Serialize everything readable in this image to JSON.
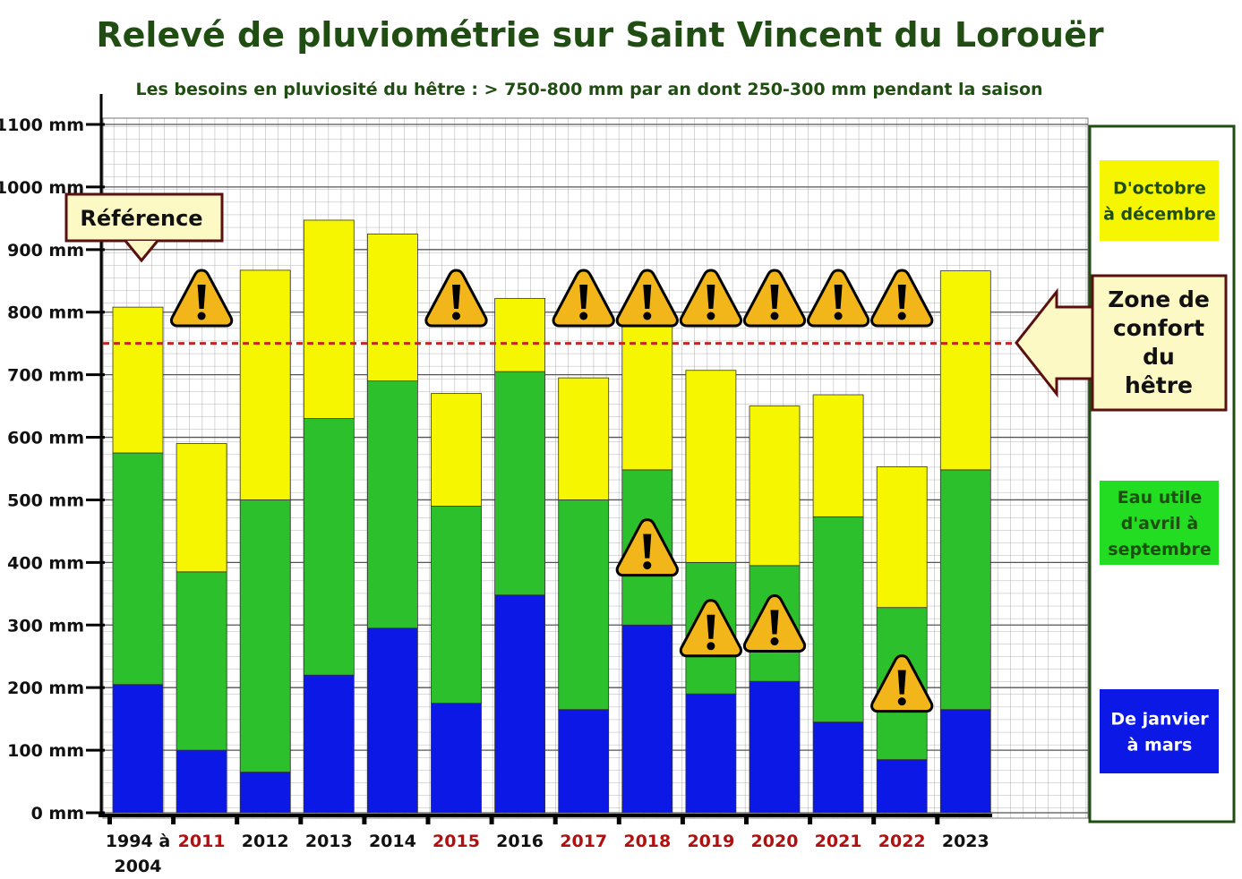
{
  "title": "Relevé de pluviométrie sur Saint Vincent du Lorouër",
  "subtitle": "Les besoins en pluviosité du hêtre : > 750-800 mm par an dont 250-300 mm pendant la saison",
  "reference_label": "Référence",
  "comfort_label": [
    "Zone de",
    "confort",
    "du",
    "hêtre"
  ],
  "legend": [
    {
      "lines": [
        "D'octobre",
        "à décembre"
      ],
      "color": "#f6f600",
      "text_color": "#1f4d12"
    },
    {
      "lines": [
        "Eau utile",
        "d'avril à",
        "septembre"
      ],
      "color": "#22dd22",
      "text_color": "#1f4d12"
    },
    {
      "lines": [
        "De janvier",
        "à mars"
      ],
      "color": "#0b18e6",
      "text_color": "#ffffff"
    }
  ],
  "colors": {
    "jan_mar": "#0b18e6",
    "apr_sep": "#2cc12c",
    "oct_dec": "#f6f600",
    "threshold": "#cc2222",
    "warning": "#f2b51a",
    "title": "#1f4d12",
    "deficit_year": "#b01010"
  },
  "icons": [
    "warning-icon",
    "arrow-down-icon",
    "arrow-left-icon"
  ],
  "chart_data": {
    "type": "bar",
    "stacked": true,
    "categories": [
      "1994 à 2004",
      "2011",
      "2012",
      "2013",
      "2014",
      "2015",
      "2016",
      "2017",
      "2018",
      "2019",
      "2020",
      "2021",
      "2022",
      "2023"
    ],
    "category_lines": [
      [
        "1994 à",
        "2004"
      ],
      [
        "2011"
      ],
      [
        "2012"
      ],
      [
        "2013"
      ],
      [
        "2014"
      ],
      [
        "2015"
      ],
      [
        "2016"
      ],
      [
        "2017"
      ],
      [
        "2018"
      ],
      [
        "2019"
      ],
      [
        "2020"
      ],
      [
        "2021"
      ],
      [
        "2022"
      ],
      [
        "2023"
      ]
    ],
    "deficit_years": [
      false,
      true,
      false,
      false,
      false,
      true,
      false,
      true,
      true,
      true,
      true,
      true,
      true,
      false
    ],
    "series": [
      {
        "name": "De janvier à mars",
        "values": [
          205,
          100,
          65,
          220,
          295,
          175,
          348,
          165,
          300,
          190,
          210,
          145,
          85,
          165
        ]
      },
      {
        "name": "Eau utile d'avril à septembre",
        "values": [
          370,
          285,
          435,
          410,
          395,
          315,
          357,
          335,
          248,
          210,
          185,
          328,
          243,
          383
        ]
      },
      {
        "name": "D'octobre à décembre",
        "values": [
          233,
          205,
          367,
          317,
          235,
          180,
          117,
          195,
          250,
          307,
          255,
          195,
          225,
          318
        ]
      }
    ],
    "warnings_above_bar": [
      false,
      true,
      false,
      false,
      false,
      true,
      false,
      true,
      true,
      true,
      true,
      true,
      true,
      false
    ],
    "warnings_in_summer": [
      false,
      false,
      false,
      false,
      false,
      false,
      false,
      false,
      true,
      true,
      true,
      false,
      true,
      false
    ],
    "threshold": 750,
    "yticks": [
      0,
      100,
      200,
      300,
      400,
      500,
      600,
      700,
      800,
      900,
      1000,
      1100
    ],
    "ytick_labels": [
      "0 mm",
      "100 mm",
      "200 mm",
      "300 mm",
      "400 mm",
      "500 mm",
      "600 mm",
      "700 mm",
      "800 mm",
      "900 mm",
      "1000 mm",
      "1100 mm"
    ],
    "ylim": [
      0,
      1100
    ],
    "grid": true,
    "legend_position": "right"
  }
}
